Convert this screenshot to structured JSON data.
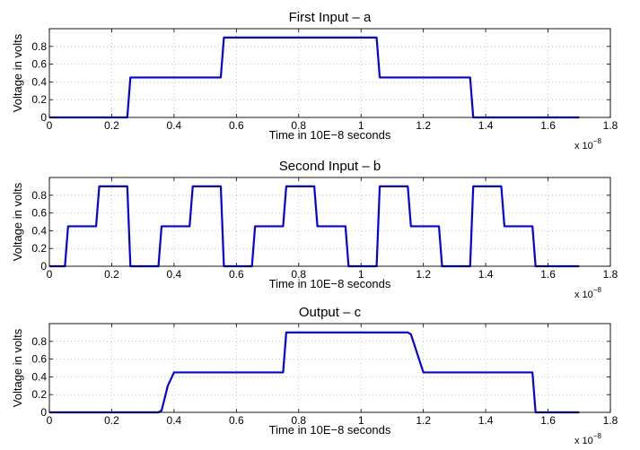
{
  "chart_data": [
    {
      "type": "line",
      "title": "First Input – a",
      "xlabel": "Time in 10E−8 seconds",
      "ylabel": "Voltage in volts",
      "xlim": [
        0,
        1.8
      ],
      "ylim": [
        0,
        1.0
      ],
      "xticks": [
        0,
        0.2,
        0.4,
        0.6,
        0.8,
        1,
        1.2,
        1.4,
        1.6,
        1.8
      ],
      "xtick_labels": [
        "0",
        "0.2",
        "0.4",
        "0.6",
        "0.8",
        "1",
        "1.2",
        "1.4",
        "1.6",
        "1.8"
      ],
      "yticks": [
        0,
        0.2,
        0.4,
        0.6,
        0.8
      ],
      "ytick_labels": [
        "0",
        "0.2",
        "0.4",
        "0.6",
        "0.8"
      ],
      "x_multiplier": "x 10",
      "x_multiplier_exp": "−8",
      "grid": true,
      "color": "#0000ee",
      "series": [
        {
          "x": [
            0,
            0.25,
            0.26,
            0.55,
            0.56,
            1.05,
            1.06,
            1.35,
            1.36,
            1.7
          ],
          "y": [
            0,
            0,
            0.45,
            0.45,
            0.9,
            0.9,
            0.45,
            0.45,
            0,
            0
          ]
        }
      ]
    },
    {
      "type": "line",
      "title": "Second Input – b",
      "xlabel": "Time in 10E−8 seconds",
      "ylabel": "Voltage in volts",
      "xlim": [
        0,
        1.8
      ],
      "ylim": [
        0,
        1.0
      ],
      "xticks": [
        0,
        0.2,
        0.4,
        0.6,
        0.8,
        1,
        1.2,
        1.4,
        1.6,
        1.8
      ],
      "xtick_labels": [
        "0",
        "0.2",
        "0.4",
        "0.6",
        "0.8",
        "1",
        "1.2",
        "1.4",
        "1.6",
        "1.8"
      ],
      "yticks": [
        0,
        0.2,
        0.4,
        0.6,
        0.8
      ],
      "ytick_labels": [
        "0",
        "0.2",
        "0.4",
        "0.6",
        "0.8"
      ],
      "x_multiplier": "x 10",
      "x_multiplier_exp": "−8",
      "grid": true,
      "color": "#0000ee",
      "series": [
        {
          "x": [
            0,
            0.05,
            0.06,
            0.15,
            0.16,
            0.25,
            0.26,
            0.35,
            0.36,
            0.45,
            0.46,
            0.55,
            0.56,
            0.65,
            0.66,
            0.75,
            0.76,
            0.85,
            0.86,
            0.95,
            0.96,
            1.05,
            1.06,
            1.15,
            1.16,
            1.25,
            1.26,
            1.35,
            1.36,
            1.45,
            1.46,
            1.55,
            1.56,
            1.7
          ],
          "y": [
            0,
            0,
            0.45,
            0.45,
            0.9,
            0.9,
            0,
            0,
            0.45,
            0.45,
            0.9,
            0.9,
            0,
            0,
            0.45,
            0.45,
            0.9,
            0.9,
            0.45,
            0.45,
            0,
            0,
            0.9,
            0.9,
            0.45,
            0.45,
            0,
            0,
            0.9,
            0.9,
            0.45,
            0.45,
            0,
            0
          ]
        }
      ]
    },
    {
      "type": "line",
      "title": "Output – c",
      "xlabel": "Time in 10E−8 seconds",
      "ylabel": "Voltage in volts",
      "xlim": [
        0,
        1.8
      ],
      "ylim": [
        0,
        1.0
      ],
      "xticks": [
        0,
        0.2,
        0.4,
        0.6,
        0.8,
        1,
        1.2,
        1.4,
        1.6,
        1.8
      ],
      "xtick_labels": [
        "0",
        "0.2",
        "0.4",
        "0.6",
        "0.8",
        "1",
        "1.2",
        "1.4",
        "1.6",
        "1.8"
      ],
      "yticks": [
        0,
        0.2,
        0.4,
        0.6,
        0.8
      ],
      "ytick_labels": [
        "0",
        "0.2",
        "0.4",
        "0.6",
        "0.8"
      ],
      "x_multiplier": "x 10",
      "x_multiplier_exp": "−8",
      "grid": true,
      "color": "#0000ee",
      "series": [
        {
          "x": [
            0,
            0.35,
            0.36,
            0.38,
            0.4,
            0.75,
            0.76,
            1.15,
            1.16,
            1.2,
            1.55,
            1.56,
            1.7
          ],
          "y": [
            0,
            0,
            0.02,
            0.3,
            0.45,
            0.45,
            0.9,
            0.9,
            0.88,
            0.45,
            0.45,
            0,
            0
          ]
        }
      ]
    }
  ]
}
